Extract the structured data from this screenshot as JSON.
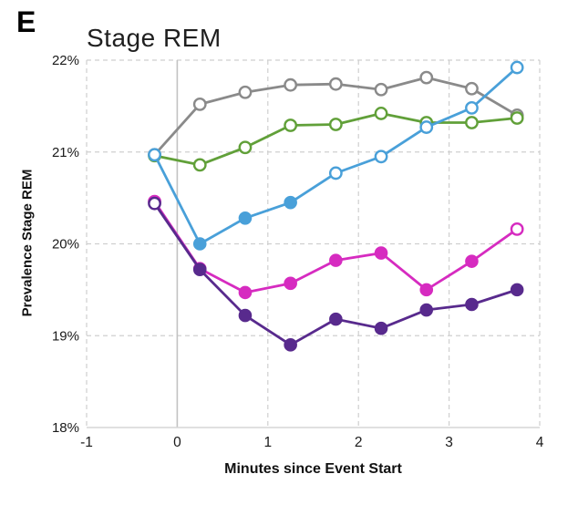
{
  "chart_data": {
    "type": "line",
    "panel_label": "E",
    "title": "Stage REM",
    "xlabel": "Minutes since Event Start",
    "ylabel": "Prevalence Stage REM",
    "xlim": [
      -1,
      4
    ],
    "ylim": [
      18,
      22
    ],
    "xticks": [
      -1,
      0,
      1,
      2,
      3,
      4
    ],
    "xtick_labels": [
      "-1",
      "0",
      "1",
      "2",
      "3",
      "4"
    ],
    "yticks": [
      18,
      19,
      20,
      21,
      22
    ],
    "ytick_labels": [
      "18%",
      "19%",
      "20%",
      "21%",
      "22%"
    ],
    "grid": "dashed",
    "event_line_x": 0,
    "legend": "none",
    "x": [
      -0.25,
      0.25,
      0.75,
      1.25,
      1.75,
      2.25,
      2.75,
      3.25,
      3.75
    ],
    "series": [
      {
        "name": "gray-series",
        "color": "#8A8A8A",
        "values": [
          20.97,
          21.52,
          21.65,
          21.73,
          21.74,
          21.68,
          21.81,
          21.69,
          21.4
        ],
        "open": [
          true,
          true,
          true,
          true,
          true,
          true,
          true,
          true,
          true
        ]
      },
      {
        "name": "green-series",
        "color": "#61A039",
        "values": [
          20.96,
          20.86,
          21.05,
          21.29,
          21.3,
          21.42,
          21.32,
          21.32,
          21.37
        ],
        "open": [
          true,
          true,
          true,
          true,
          true,
          true,
          true,
          true,
          true
        ]
      },
      {
        "name": "blue-series",
        "color": "#49A0D9",
        "values": [
          20.97,
          20.0,
          20.28,
          20.45,
          20.77,
          20.95,
          21.27,
          21.48,
          21.92
        ],
        "open": [
          true,
          false,
          false,
          false,
          true,
          true,
          true,
          true,
          true
        ]
      },
      {
        "name": "pink-series",
        "color": "#D62BC0",
        "values": [
          20.46,
          19.73,
          19.47,
          19.57,
          19.82,
          19.9,
          19.5,
          19.81,
          20.16
        ],
        "open": [
          true,
          false,
          false,
          false,
          false,
          false,
          false,
          false,
          true
        ]
      },
      {
        "name": "purple-series",
        "color": "#582A8D",
        "values": [
          20.44,
          19.72,
          19.22,
          18.9,
          19.18,
          19.08,
          19.28,
          19.34,
          19.5
        ],
        "open": [
          true,
          false,
          false,
          false,
          false,
          false,
          false,
          false,
          false
        ]
      }
    ],
    "colors": {
      "grid": "#CFCFCF",
      "axis": "#D6D6D6",
      "event_line": "#C2C2C2",
      "text": "#1a1a1a"
    }
  }
}
